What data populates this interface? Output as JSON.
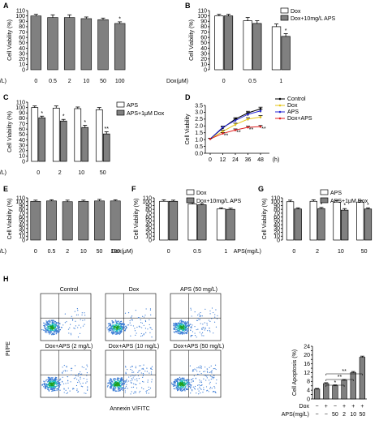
{
  "colors": {
    "gray": "#808080",
    "white": "#ffffff",
    "black": "#000000",
    "control": "#000000",
    "dox": "#e6c619",
    "aps": "#2a2ad4",
    "doxaps": "#e02020",
    "flow": "#3a7bd5"
  },
  "panels": [
    {
      "label": "A",
      "ylabel": "Cell Viability (%)",
      "yticks": [
        "0",
        "10",
        "20",
        "30",
        "40",
        "50",
        "60",
        "70",
        "80",
        "90",
        "100",
        "110"
      ],
      "xtitle": "APS(mg/L)",
      "xticks": [
        "0",
        "0.5",
        "2",
        "10",
        "50",
        "100"
      ]
    },
    {
      "label": "B",
      "ylabel": "Cell Viability (%)",
      "yticks": [
        "0",
        "10",
        "20",
        "30",
        "40",
        "50",
        "60",
        "70",
        "80",
        "90",
        "100",
        "110"
      ],
      "xtitle": "Dox(μM)",
      "xticks": [
        "0",
        "0.5",
        "1"
      ],
      "legend": [
        "Dox",
        "Dox+10mg/L APS"
      ]
    },
    {
      "label": "C",
      "ylabel": "Cell Viability (%)",
      "yticks": [
        "0",
        "10",
        "20",
        "30",
        "40",
        "50",
        "60",
        "70",
        "80",
        "90",
        "100",
        "110"
      ],
      "xtitle": "APS(mg/L)",
      "xticks": [
        "0",
        "2",
        "10",
        "50"
      ],
      "legend": [
        "APS",
        "APS+1μM Dox"
      ]
    },
    {
      "label": "D",
      "ylabel": "Cell Viability",
      "yticks": [
        "0.0",
        "0.5",
        "1.0",
        "1.5",
        "2.0",
        "2.5",
        "3.0",
        "3.5"
      ],
      "xtitle": "(h)",
      "xticks": [
        "0",
        "12",
        "24",
        "36",
        "48"
      ],
      "legend": [
        "Control",
        "Dox",
        "APS",
        "Dox+APS"
      ]
    },
    {
      "label": "E",
      "ylabel": "Cell Viability (%)",
      "yticks": [
        "0",
        "10",
        "20",
        "30",
        "40",
        "50",
        "60",
        "70",
        "80",
        "90",
        "100",
        "110"
      ],
      "xtitle": "APS(mg/L)",
      "xticks": [
        "0",
        "0.5",
        "2",
        "10",
        "50",
        "100"
      ]
    },
    {
      "label": "F",
      "ylabel": "Cell Viability (%)",
      "yticks": [
        "0",
        "10",
        "20",
        "30",
        "40",
        "50",
        "60",
        "70",
        "80",
        "90",
        "100",
        "110"
      ],
      "xtitle": "Dox(μM)",
      "xticks": [
        "0",
        "0.5",
        "1"
      ],
      "legend": [
        "Dox",
        "Dox+10mg/L APS"
      ]
    },
    {
      "label": "G",
      "ylabel": "Cell Viability (%)",
      "yticks": [
        "0",
        "10",
        "20",
        "30",
        "40",
        "50",
        "60",
        "70",
        "80",
        "90",
        "100",
        "110"
      ],
      "xtitle": "APS(mg/L)",
      "xticks": [
        "0",
        "2",
        "10",
        "50"
      ],
      "legend": [
        "APS",
        "APS+1μM Dox"
      ]
    },
    {
      "label": "H",
      "ylabel": "PI/PE",
      "xtitle": "Annexin V/FITC",
      "flow_titles": [
        "Control",
        "Dox",
        "APS (50 mg/L)",
        "Dox+APS (2 mg/L)",
        "Dox+APS (10 mg/L)",
        "Dox+APS (50 mg/L)"
      ]
    },
    {
      "label": "H-bar",
      "ylabel": "Cell Apoptosis (%)",
      "yticks": [
        "0",
        "2",
        "4",
        "6",
        "8",
        "10",
        "12",
        "14",
        "16",
        "18",
        "20",
        "22",
        "24"
      ],
      "row1_title": "Dox",
      "row1": [
        "−",
        "+",
        "−",
        "+",
        "+",
        "+"
      ],
      "row2_title": "APS(mg/L)",
      "row2": [
        "−",
        "−",
        "50",
        "2",
        "10",
        "50"
      ]
    }
  ],
  "chart_data": [
    {
      "panel": "A",
      "type": "bar",
      "categories": [
        "0",
        "0.5",
        "2",
        "10",
        "50",
        "100"
      ],
      "values": [
        100,
        97,
        97,
        95,
        93,
        86
      ],
      "errors": [
        3,
        5,
        5,
        3,
        3,
        3
      ],
      "sig": [
        "",
        "",
        "",
        "",
        "",
        "*"
      ],
      "ylim": [
        0,
        110
      ]
    },
    {
      "panel": "B",
      "type": "bar",
      "categories": [
        "0",
        "0.5",
        "1"
      ],
      "series": [
        {
          "name": "Dox",
          "values": [
            100,
            91,
            80
          ],
          "errors": [
            3,
            6,
            5
          ],
          "sig": [
            "",
            "",
            ""
          ]
        },
        {
          "name": "Dox+10mg/L APS",
          "values": [
            100,
            86,
            62
          ],
          "errors": [
            3,
            5,
            5
          ],
          "sig": [
            "",
            "",
            "*"
          ]
        }
      ],
      "ylim": [
        0,
        110
      ]
    },
    {
      "panel": "C",
      "type": "bar",
      "categories": [
        "0",
        "2",
        "10",
        "50"
      ],
      "series": [
        {
          "name": "APS",
          "values": [
            100,
            99,
            98,
            96
          ],
          "errors": [
            3,
            4,
            3,
            4
          ],
          "sig": [
            "",
            "",
            "",
            ""
          ]
        },
        {
          "name": "APS+1μM Dox",
          "values": [
            81,
            75,
            63,
            51
          ],
          "errors": [
            3,
            3,
            4,
            4
          ],
          "sig": [
            "*",
            "*",
            "*",
            "**"
          ]
        }
      ],
      "ylim": [
        0,
        110
      ]
    },
    {
      "panel": "D",
      "type": "line",
      "x": [
        0,
        12,
        24,
        36,
        48
      ],
      "series": [
        {
          "name": "Control",
          "values": [
            1.05,
            1.85,
            2.5,
            2.95,
            3.25
          ],
          "errors": [
            0.05,
            0.08,
            0.1,
            0.12,
            0.12
          ]
        },
        {
          "name": "Dox",
          "values": [
            1.05,
            1.6,
            2.1,
            2.5,
            2.65
          ],
          "errors": [
            0.05,
            0.08,
            0.1,
            0.1,
            0.1
          ]
        },
        {
          "name": "APS",
          "values": [
            1.05,
            1.9,
            2.4,
            2.85,
            3.1
          ],
          "errors": [
            0.05,
            0.08,
            0.1,
            0.12,
            0.12
          ]
        },
        {
          "name": "Dox+APS",
          "values": [
            1.05,
            1.45,
            1.7,
            1.9,
            1.95
          ],
          "errors": [
            0.05,
            0.06,
            0.08,
            0.08,
            0.08
          ]
        }
      ],
      "sig": [
        "",
        "**",
        "**",
        "**",
        "**"
      ],
      "ylim": [
        0,
        3.5
      ]
    },
    {
      "panel": "E",
      "type": "bar",
      "categories": [
        "0",
        "0.5",
        "2",
        "10",
        "50",
        "100"
      ],
      "values": [
        101,
        102,
        100,
        101,
        102,
        102
      ],
      "errors": [
        3,
        3,
        4,
        3,
        4,
        3
      ],
      "ylim": [
        0,
        110
      ]
    },
    {
      "panel": "F",
      "type": "bar",
      "categories": [
        "0",
        "0.5",
        "1"
      ],
      "series": [
        {
          "name": "Dox",
          "values": [
            101,
            94,
            81
          ],
          "errors": [
            4,
            3,
            3
          ]
        },
        {
          "name": "Dox+10mg/L APS",
          "values": [
            101,
            92,
            80
          ],
          "errors": [
            3,
            3,
            3
          ]
        }
      ],
      "ylim": [
        0,
        110
      ]
    },
    {
      "panel": "G",
      "type": "bar",
      "categories": [
        "0",
        "2",
        "10",
        "50"
      ],
      "series": [
        {
          "name": "APS",
          "values": [
            100,
            101,
            99,
            99
          ],
          "errors": [
            4,
            4,
            4,
            4
          ],
          "sig": [
            "",
            "",
            "",
            ""
          ]
        },
        {
          "name": "APS+1μM Dox",
          "values": [
            81,
            82,
            78,
            81
          ],
          "errors": [
            3,
            3,
            4,
            3
          ],
          "sig": [
            "",
            "*",
            "*",
            "*"
          ]
        }
      ],
      "ylim": [
        0,
        110
      ]
    },
    {
      "panel": "H-bar",
      "type": "bar",
      "categories": [
        "1",
        "2",
        "3",
        "4",
        "5",
        "6"
      ],
      "values": [
        4.5,
        7,
        6,
        8.5,
        12,
        19
      ],
      "errors": [
        0.3,
        0.4,
        0.4,
        0.4,
        0.5,
        0.5
      ],
      "brackets": [
        {
          "from": 2,
          "to": 6,
          "label": "**"
        },
        {
          "from": 2,
          "to": 5,
          "label": "**"
        },
        {
          "from": 2,
          "to": 4,
          "label": "*"
        }
      ],
      "ylim": [
        0,
        24
      ]
    }
  ]
}
